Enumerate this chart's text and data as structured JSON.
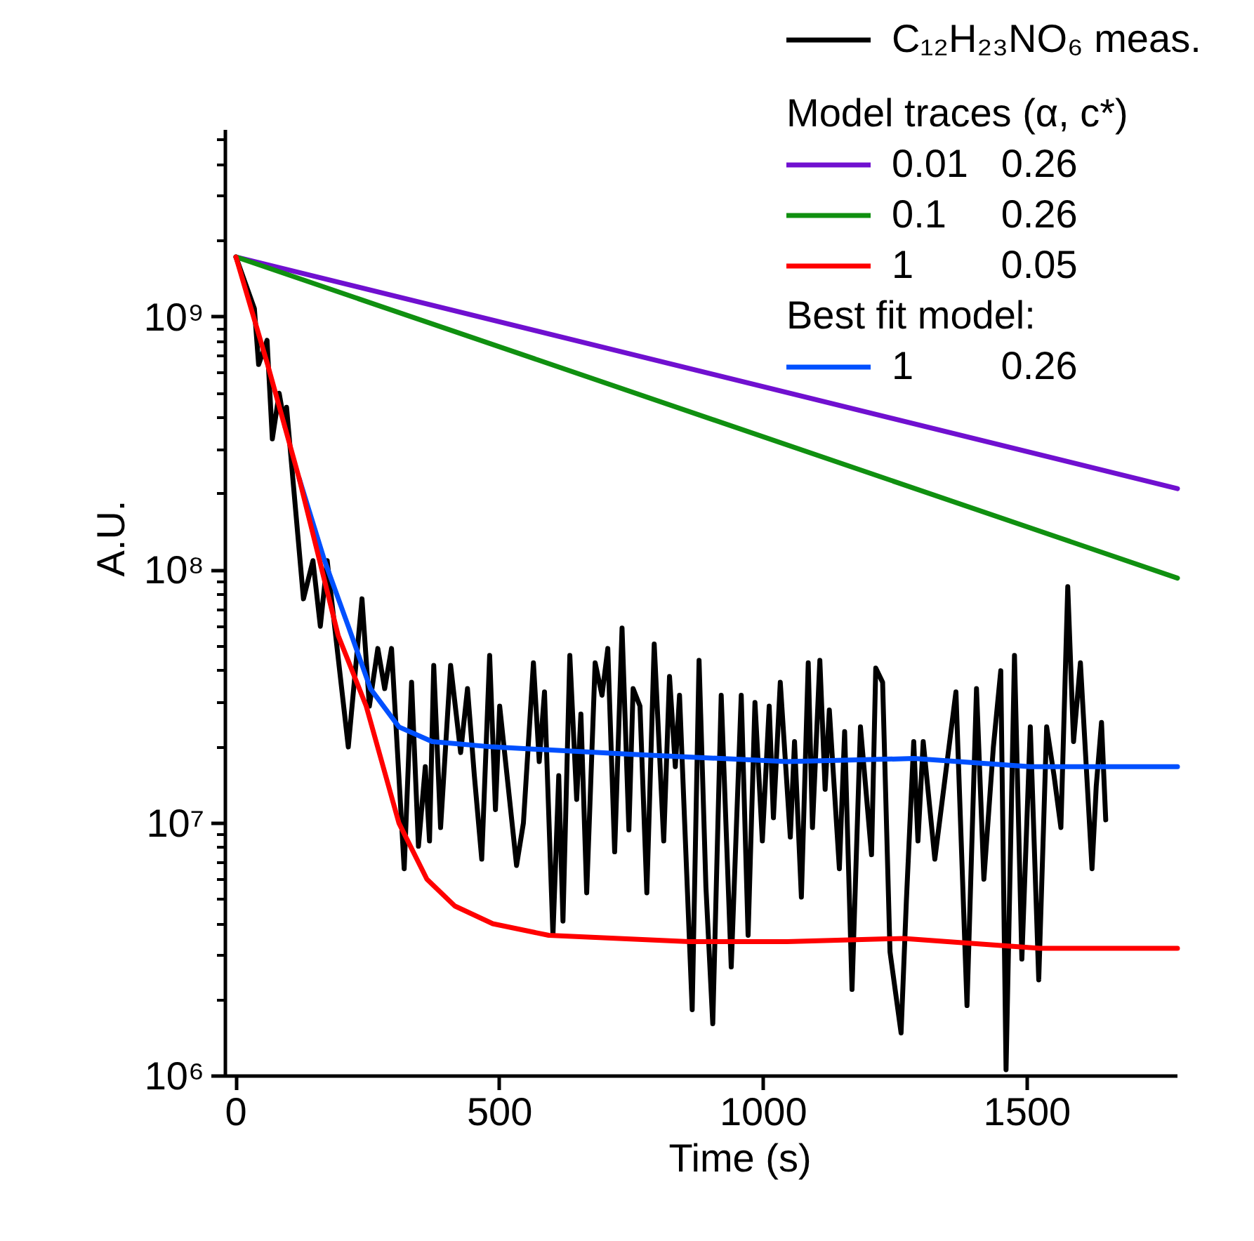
{
  "chart_data": {
    "type": "line",
    "xlabel": "Time (s)",
    "ylabel": "A.U.",
    "legend_title": "Model traces (α, c*)",
    "annotations": [
      "Best fit model:"
    ],
    "log": "y",
    "grid": false,
    "legend": "top right",
    "line_style": "solid",
    "xlim": [
      -20,
      1785
    ],
    "ylim": [
      1000000,
      5500000000
    ],
    "xticks": [
      0,
      500,
      1000,
      1500
    ],
    "yticks": [
      {
        "value": 1000000,
        "label": "10⁶"
      },
      {
        "value": 10000000,
        "label": "10⁷"
      },
      {
        "value": 100000000,
        "label": "10⁸"
      },
      {
        "value": 1000000000,
        "label": "10⁹"
      }
    ],
    "series": [
      {
        "name": "C₁₂H₂₃NO₆ meas.",
        "color": "#000000",
        "x": [
          0,
          35,
          43,
          59,
          69,
          82,
          93,
          96,
          128,
          146,
          160,
          173,
          213,
          239,
          253,
          269,
          282,
          295,
          319,
          333,
          346,
          359,
          367,
          375,
          388,
          407,
          426,
          439,
          452,
          466,
          481,
          492,
          500,
          532,
          545,
          564,
          575,
          585,
          601,
          612,
          620,
          633,
          646,
          654,
          665,
          681,
          694,
          705,
          718,
          732,
          745,
          753,
          766,
          779,
          793,
          811,
          822,
          833,
          841,
          865,
          878,
          891,
          904,
          920,
          939,
          958,
          971,
          984,
          998,
          1011,
          1019,
          1032,
          1051,
          1059,
          1072,
          1085,
          1093,
          1107,
          1117,
          1125,
          1144,
          1154,
          1168,
          1184,
          1205,
          1213,
          1226,
          1240,
          1261,
          1271,
          1285,
          1293,
          1303,
          1325,
          1365,
          1386,
          1404,
          1418,
          1436,
          1450,
          1460,
          1476,
          1490,
          1506,
          1522,
          1537,
          1551,
          1564,
          1577,
          1588,
          1601,
          1623,
          1631,
          1641,
          1649
        ],
        "values": [
          1730000000,
          1080000000,
          650000000,
          810000000,
          330000000,
          500000000,
          370000000,
          440000000,
          77000000,
          109000000,
          60000000,
          109000000,
          20000000,
          77000000,
          29000000,
          49000000,
          34000000,
          49000000,
          6600000,
          36000000,
          8100000,
          16700000,
          8500000,
          42000000,
          9600000,
          42000000,
          19000000,
          34000000,
          15400000,
          7200000,
          46000000,
          11300000,
          29000000,
          6800000,
          10000000,
          43000000,
          17500000,
          33000000,
          3600000,
          15400000,
          4100000,
          46000000,
          12400000,
          27000000,
          5300000,
          43000000,
          32000000,
          49000000,
          7700000,
          59000000,
          9400000,
          34000000,
          29000000,
          5300000,
          51000000,
          8500000,
          38000000,
          16700000,
          32000000,
          1830000,
          44000000,
          5600000,
          1610000,
          32000000,
          2700000,
          32000000,
          3600000,
          30000000,
          8500000,
          29000000,
          10500000,
          36000000,
          8800000,
          21000000,
          5100000,
          43000000,
          9600000,
          44000000,
          13600000,
          28000000,
          6600000,
          23000000,
          2200000,
          24000000,
          7500000,
          41000000,
          36000000,
          3100000,
          1480000,
          4900000,
          21000000,
          8500000,
          21000000,
          7200000,
          33000000,
          1900000,
          34000000,
          6000000,
          20000000,
          40000000,
          1060000,
          46000000,
          2900000,
          24000000,
          2400000,
          24000000,
          15400000,
          9600000,
          86000000,
          21000000,
          43000000,
          6600000,
          14000000,
          25000000,
          10300000
        ]
      },
      {
        "name": "0.01   0.26",
        "color": "#7010d0",
        "x": [
          0,
          1785
        ],
        "values": [
          1730000000,
          210000000
        ]
      },
      {
        "name": "0.1     0.26",
        "color": "#109010",
        "x": [
          0,
          1785
        ],
        "values": [
          1730000000,
          93000000
        ]
      },
      {
        "name": "1        0.05",
        "color": "#ff0000",
        "x": [
          0,
          60,
          120,
          194,
          247,
          309,
          362,
          415,
          487,
          593,
          859,
          1045,
          1266,
          1524,
          1785
        ],
        "values": [
          1730000000,
          650000000,
          230000000,
          55000000,
          29000000,
          10000000,
          6000000,
          4700000,
          4000000,
          3600000,
          3400000,
          3400000,
          3500000,
          3200000,
          3200000
        ]
      },
      {
        "name": "1        0.26",
        "color": "#0050ff",
        "x": [
          120,
          168,
          213,
          255,
          309,
          372,
          487,
          753,
          1045,
          1285,
          1506,
          1785
        ],
        "values": [
          230000000,
          109000000,
          60000000,
          34000000,
          24000000,
          21000000,
          20000000,
          18700000,
          17500000,
          18000000,
          16700000,
          16700000
        ]
      }
    ]
  }
}
